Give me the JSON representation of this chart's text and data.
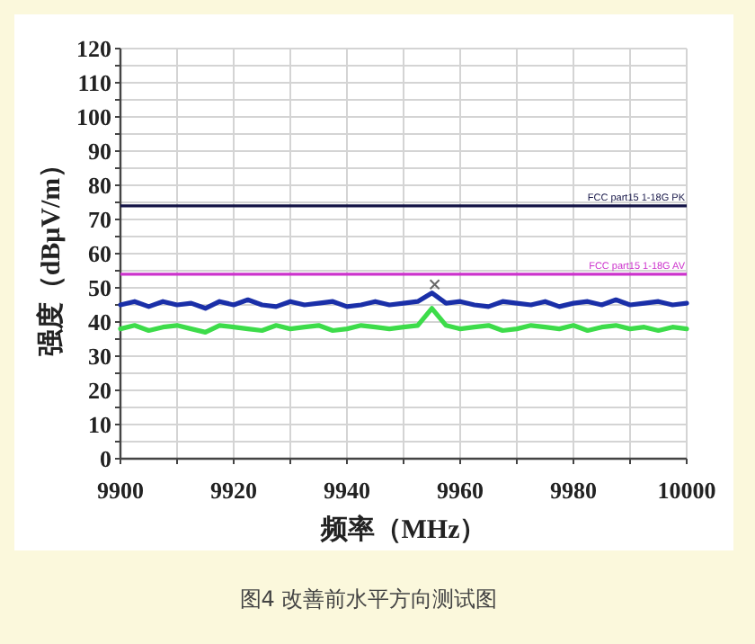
{
  "chart_data": {
    "type": "line",
    "xlabel": "频率（MHz）",
    "ylabel": "强度（dBμV/m）",
    "annotations": [
      "图4 改善前水平方向测试图"
    ],
    "xlim": [
      9900,
      10000
    ],
    "xticks": [
      9900,
      {
        "value": 9910,
        "label": null
      },
      9920,
      {
        "value": 9930,
        "label": null
      },
      9940,
      {
        "value": 9950,
        "label": null
      },
      9960,
      {
        "value": 9970,
        "label": null
      },
      9980,
      {
        "value": 9990,
        "label": null
      },
      10000
    ],
    "ylim": [
      0,
      120
    ],
    "yticks": [
      0,
      {
        "value": 5,
        "label": null
      },
      10,
      {
        "value": 15,
        "label": null
      },
      20,
      {
        "value": 25,
        "label": null
      },
      30,
      {
        "value": 35,
        "label": null
      },
      40,
      {
        "value": 45,
        "label": null
      },
      50,
      {
        "value": 55,
        "label": null
      },
      60,
      {
        "value": 65,
        "label": null
      },
      70,
      {
        "value": 75,
        "label": null
      },
      80,
      {
        "value": 85,
        "label": null
      },
      90,
      {
        "value": 95,
        "label": null
      },
      100,
      {
        "value": 105,
        "label": null
      },
      110,
      {
        "value": 115,
        "label": null
      },
      120
    ],
    "grid": true,
    "x": [
      9900,
      9902.5,
      9905,
      9907.5,
      9910,
      9912.5,
      9915,
      9917.5,
      9920,
      9922.5,
      9925,
      9927.5,
      9930,
      9932.5,
      9935,
      9937.5,
      9940,
      9942.5,
      9945,
      9947.5,
      9950,
      9952.5,
      9955,
      9957.5,
      9960,
      9962.5,
      9965,
      9967.5,
      9970,
      9972.5,
      9975,
      9977.5,
      9980,
      9982.5,
      9985,
      9987.5,
      9990,
      9992.5,
      9995,
      9997.5,
      10000
    ],
    "series": [
      {
        "color": "#1a2fa8",
        "values": [
          45,
          46,
          44.5,
          46,
          45,
          45.5,
          44,
          46,
          45,
          46.5,
          45,
          44.5,
          46,
          45,
          45.5,
          46,
          44.5,
          45,
          46,
          45,
          45.5,
          46,
          48.5,
          45.5,
          46,
          45,
          44.5,
          46,
          45.5,
          45,
          46,
          44.5,
          45.5,
          46,
          45,
          46.5,
          45,
          45.5,
          46,
          45,
          45.5
        ]
      },
      {
        "color": "#3ddc4a",
        "values": [
          38,
          39,
          37.5,
          38.5,
          39,
          38,
          37,
          39,
          38.5,
          38,
          37.5,
          39,
          38,
          38.5,
          39,
          37.5,
          38,
          39,
          38.5,
          38,
          38.5,
          39,
          44,
          39,
          38,
          38.5,
          39,
          37.5,
          38,
          39,
          38.5,
          38,
          39,
          37.5,
          38.5,
          39,
          38,
          38.5,
          37.5,
          38.5,
          38
        ]
      },
      {
        "type": "scatter",
        "marker": "cross",
        "color": "#666666",
        "x": [
          9955.5
        ],
        "values": [
          51
        ]
      }
    ],
    "ref_lines": [
      {
        "axis": "y",
        "value": 74,
        "label": "FCC part15 1-18G PK",
        "color": "#141446"
      },
      {
        "axis": "y",
        "value": 54,
        "label": "FCC part15 1-18G AV",
        "color": "#cc33cc"
      }
    ]
  }
}
